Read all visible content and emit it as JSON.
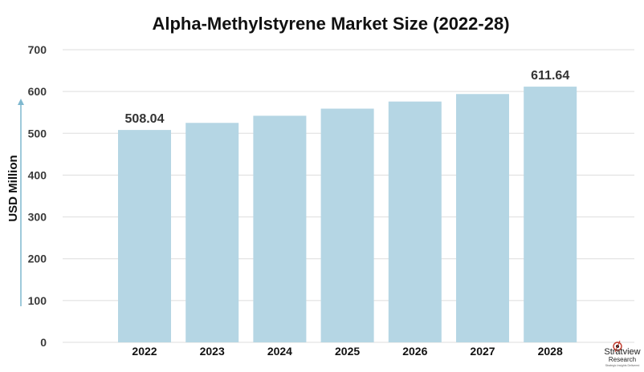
{
  "chart_data": {
    "type": "bar",
    "title": "Alpha-Methylstyrene Market Size (2022-28)",
    "xlabel": "",
    "ylabel": "USD Million",
    "categories": [
      "2022",
      "2023",
      "2024",
      "2025",
      "2026",
      "2027",
      "2028"
    ],
    "values": [
      508.04,
      525,
      542,
      559,
      576,
      594,
      611.64
    ],
    "data_labels": [
      {
        "category": "2022",
        "text": "508.04"
      },
      {
        "category": "2028",
        "text": "611.64"
      }
    ],
    "ylim": [
      0,
      700
    ],
    "yticks": [
      0,
      100,
      200,
      300,
      400,
      500,
      600,
      700
    ],
    "grid": true,
    "legend": "none"
  },
  "colors": {
    "bar": "#b5d6e4",
    "grid": "#dddddd",
    "axis_arrow": "#7fb8cf",
    "text": "#111111",
    "tick_text": "#3a3a3a"
  },
  "branding": {
    "logo_name": "Stratview",
    "logo_sub": "Research",
    "logo_tagline": "Strategic Insights Delivered",
    "logo_icon": "target-icon"
  }
}
